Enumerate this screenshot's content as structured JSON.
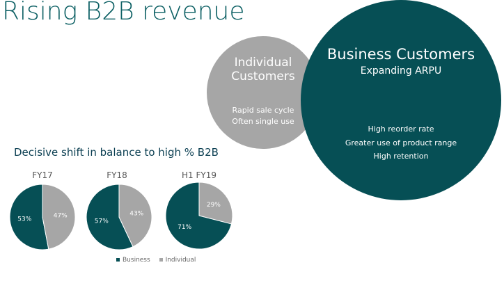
{
  "title": "Rising B2B revenue",
  "individual": {
    "heading": "Individual Customers",
    "sub_line1": "Rapid sale cycle",
    "sub_line2": "Often single use"
  },
  "business": {
    "heading": "Business Customers",
    "heading2": "Expanding ARPU",
    "sub_line1": "High reorder rate",
    "sub_line2": "Greater use of product range",
    "sub_line3": "High retention"
  },
  "shift_heading": "Decisive shift in balance to high % B2B",
  "colors": {
    "business": "#064f55",
    "individual": "#a6a6a6"
  },
  "chart_data": [
    {
      "type": "pie",
      "title": "FY17",
      "labels": [
        "Business",
        "Individual"
      ],
      "values": [
        53,
        47
      ],
      "display": [
        "53%",
        "47%"
      ]
    },
    {
      "type": "pie",
      "title": "FY18",
      "labels": [
        "Business",
        "Individual"
      ],
      "values": [
        57,
        43
      ],
      "display": [
        "57%",
        "43%"
      ]
    },
    {
      "type": "pie",
      "title": "H1 FY19",
      "labels": [
        "Business",
        "Individual"
      ],
      "values": [
        71,
        29
      ],
      "display": [
        "71%",
        "29%"
      ]
    }
  ],
  "legend": {
    "business": "Business",
    "individual": "Individual"
  }
}
